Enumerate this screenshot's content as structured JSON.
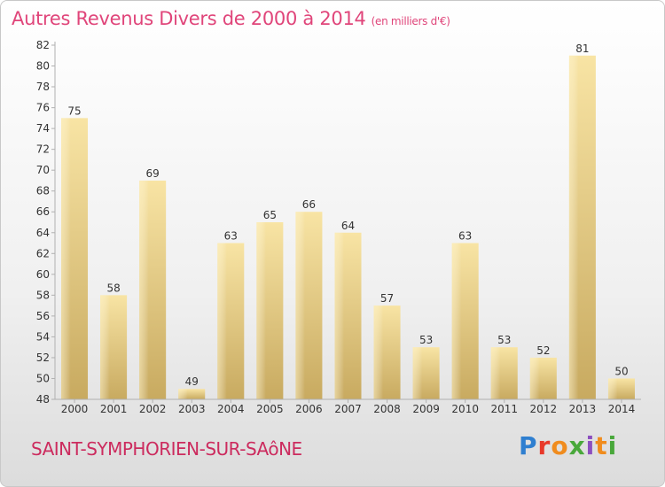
{
  "header": {
    "title": "Autres Revenus Divers de 2000 à 2014",
    "subtitle": "(en milliers d'€)"
  },
  "footer": {
    "commune": "SAINT-SYMPHORIEN-SUR-SAôNE",
    "logo_letters": [
      "P",
      "r",
      "o",
      "x",
      "i",
      "t",
      "i"
    ]
  },
  "colors": {
    "title": "#e0457a",
    "commune": "#cc2b5e",
    "bar_light": "#f6df9c",
    "bar_dark": "#c9ac62",
    "axis": "#b0b0b0"
  },
  "chart_data": {
    "type": "bar",
    "categories": [
      "2000",
      "2001",
      "2002",
      "2003",
      "2004",
      "2005",
      "2006",
      "2007",
      "2008",
      "2009",
      "2010",
      "2011",
      "2012",
      "2013",
      "2014"
    ],
    "values": [
      75,
      58,
      69,
      49,
      63,
      65,
      66,
      64,
      57,
      53,
      63,
      53,
      52,
      81,
      50
    ],
    "ylim": [
      48,
      82
    ],
    "yticks": [
      48,
      50,
      52,
      54,
      56,
      58,
      60,
      62,
      64,
      66,
      68,
      70,
      72,
      74,
      76,
      78,
      80,
      82
    ],
    "grid": false,
    "data_labels": true
  }
}
